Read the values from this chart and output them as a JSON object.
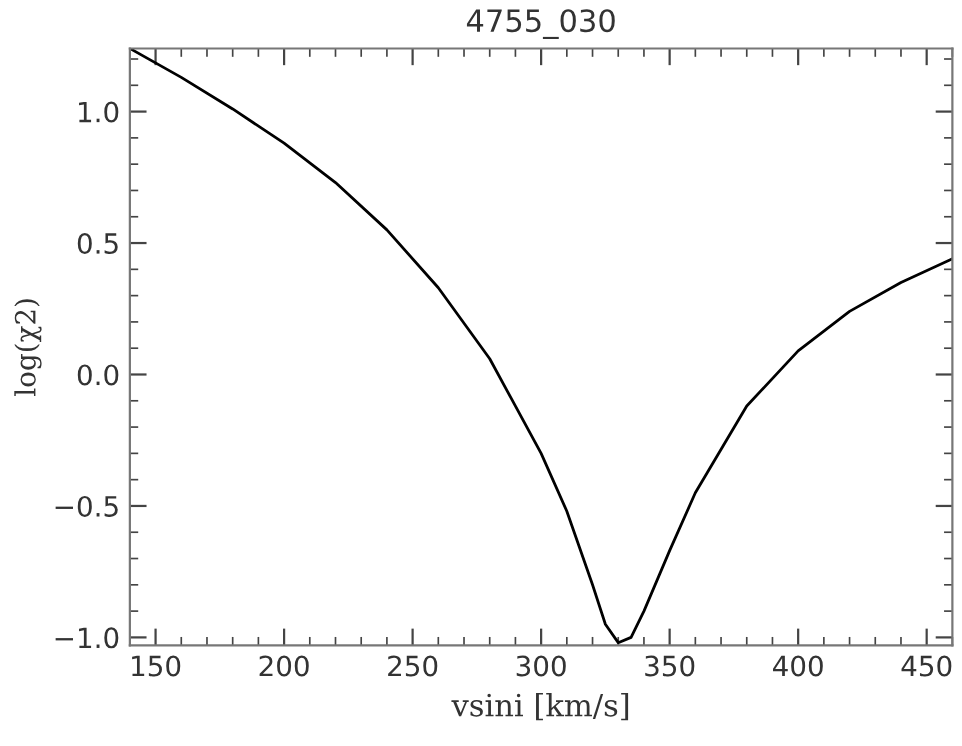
{
  "chart_data": {
    "type": "line",
    "title": "4755_030",
    "xlabel": "vsini [km/s]",
    "ylabel": "log(χ2)",
    "x": [
      140,
      160,
      180,
      200,
      220,
      240,
      260,
      280,
      300,
      310,
      320,
      325,
      330,
      335,
      340,
      350,
      360,
      380,
      400,
      420,
      440,
      460
    ],
    "series": [
      {
        "color": "#000000",
        "values": [
          1.24,
          1.13,
          1.01,
          0.88,
          0.73,
          0.55,
          0.33,
          0.06,
          -0.3,
          -0.52,
          -0.8,
          -0.95,
          -1.02,
          -1.0,
          -0.9,
          -0.67,
          -0.45,
          -0.12,
          0.09,
          0.24,
          0.35,
          0.44
        ]
      }
    ],
    "xlim": [
      140,
      460
    ],
    "ylim": [
      -1.03,
      1.24
    ],
    "xticks": [
      150,
      200,
      250,
      300,
      350,
      400,
      450
    ],
    "yticks": [
      {
        "value": -1.0,
        "label": "−1.0"
      },
      {
        "value": -0.5,
        "label": "−0.5"
      },
      {
        "value": 0.0,
        "label": "0.0"
      },
      {
        "value": 0.5,
        "label": "0.5"
      },
      {
        "value": 1.0,
        "label": "1.0"
      }
    ],
    "grid": false,
    "legend": false,
    "marker": "none",
    "line_style": "solid"
  }
}
